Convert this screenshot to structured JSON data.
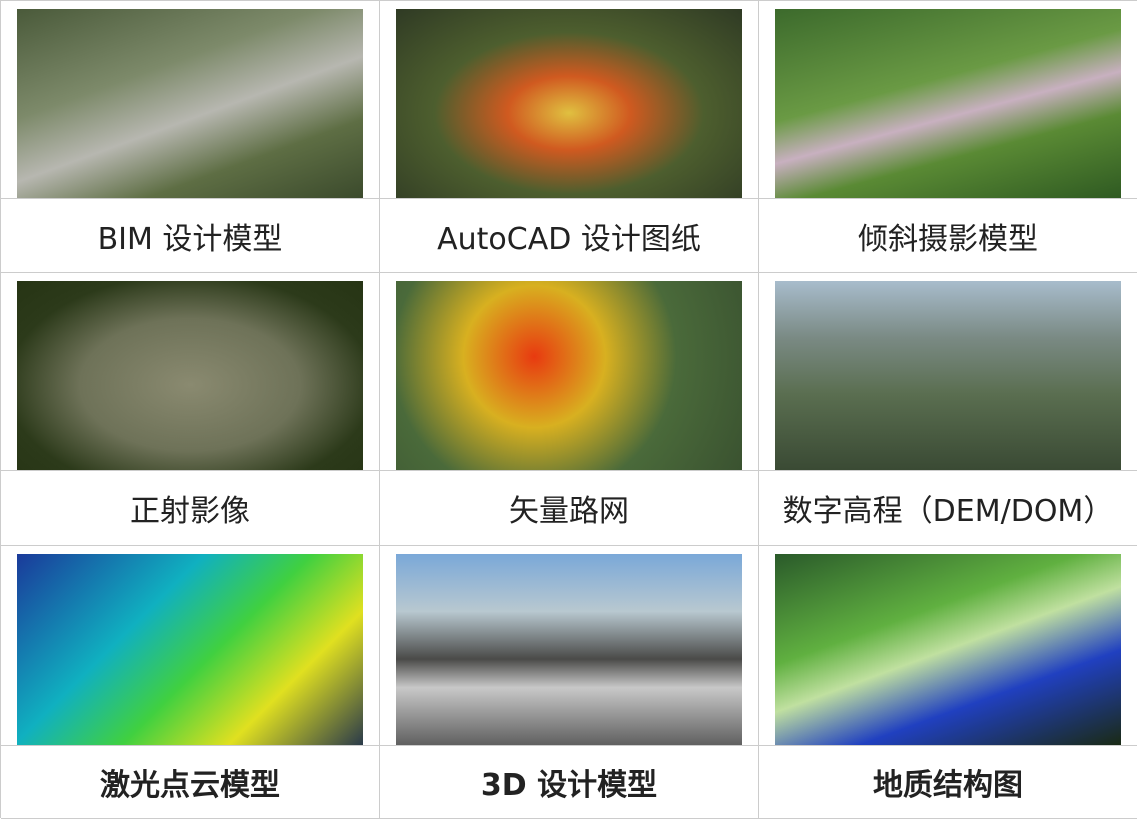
{
  "grid": {
    "cells": [
      {
        "caption": "BIM 设计模型"
      },
      {
        "caption": "AutoCAD 设计图纸"
      },
      {
        "caption": "倾斜摄影模型"
      },
      {
        "caption": "正射影像"
      },
      {
        "caption": "矢量路网"
      },
      {
        "caption": "数字高程（DEM/DOM）"
      },
      {
        "caption": "激光点云模型"
      },
      {
        "caption": "3D 设计模型"
      },
      {
        "caption": "地质结构图"
      }
    ]
  }
}
